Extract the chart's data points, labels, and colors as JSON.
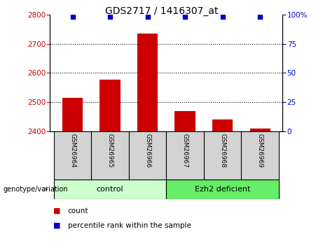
{
  "title": "GDS2717 / 1416307_at",
  "samples": [
    "GSM26964",
    "GSM26965",
    "GSM26966",
    "GSM26967",
    "GSM26968",
    "GSM26969"
  ],
  "counts": [
    2515,
    2578,
    2735,
    2470,
    2440,
    2410
  ],
  "percentile_ranks": [
    98,
    98,
    98,
    98,
    98,
    98
  ],
  "ylim_left": [
    2400,
    2800
  ],
  "ylim_right": [
    0,
    100
  ],
  "yticks_left": [
    2400,
    2500,
    2600,
    2700,
    2800
  ],
  "yticks_right": [
    0,
    25,
    50,
    75,
    100
  ],
  "bar_color": "#cc0000",
  "dot_color": "#0000cc",
  "groups": [
    {
      "label": "control",
      "indices": [
        0,
        1,
        2
      ],
      "color": "#ccffcc"
    },
    {
      "label": "Ezh2 deficient",
      "indices": [
        3,
        4,
        5
      ],
      "color": "#66ee66"
    }
  ],
  "group_label_prefix": "genotype/variation",
  "legend_count_label": "count",
  "legend_pct_label": "percentile rank within the sample",
  "grid_color": "black",
  "bg_color": "white",
  "tick_label_color_left": "#cc0000",
  "tick_label_color_right": "#0000cc",
  "bar_width": 0.55
}
